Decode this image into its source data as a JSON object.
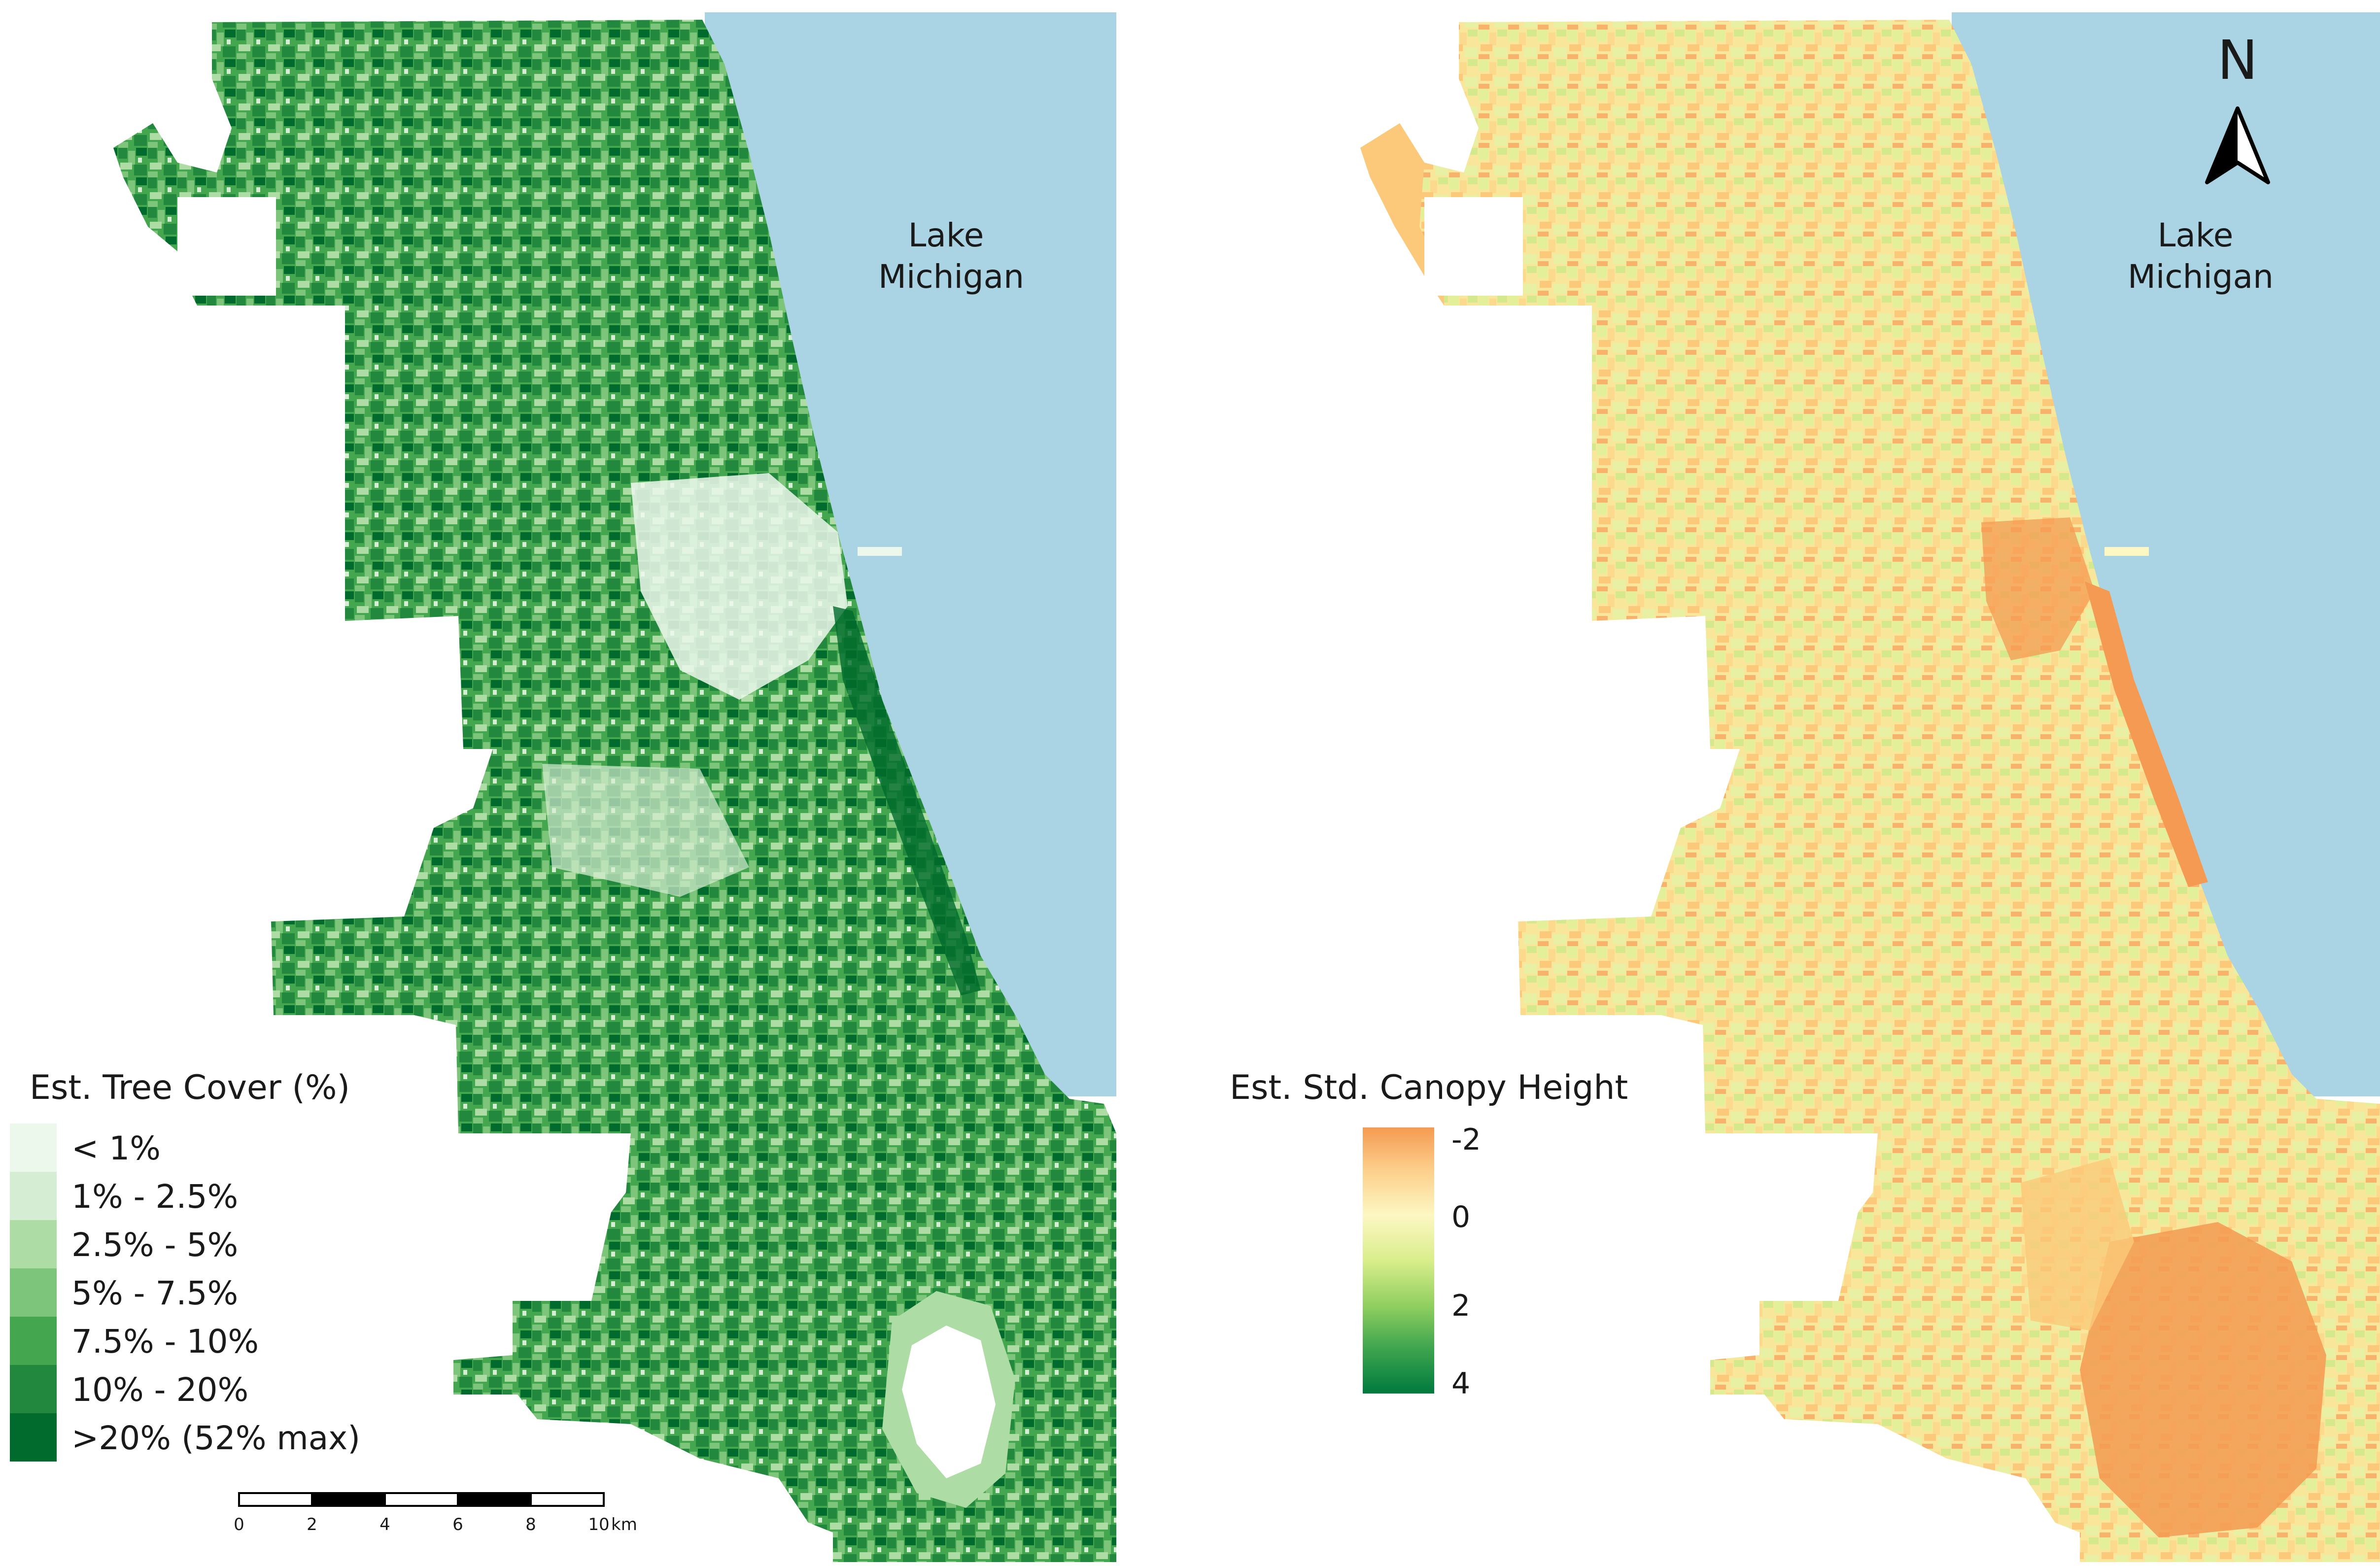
{
  "lake_label": [
    "Lake",
    "Michigan"
  ],
  "left_map": {
    "legend_title": "Est. Tree Cover (%)",
    "classes": [
      {
        "label": "< 1%",
        "color": "#edf8ec"
      },
      {
        "label": "1% - 2.5%",
        "color": "#d5edd2"
      },
      {
        "label": "2.5% - 5%",
        "color": "#aedca5"
      },
      {
        "label": "5% - 7.5%",
        "color": "#7cc57a"
      },
      {
        "label": "7.5% - 10%",
        "color": "#45a650"
      },
      {
        "label": "10% - 20%",
        "color": "#21883d"
      },
      {
        "label": ">20% (52% max)",
        "color": "#006b2c"
      }
    ]
  },
  "right_map": {
    "legend_title": "Est. Std. Canopy Height",
    "gradient_stops": [
      "#f59a52",
      "#fdcf8b",
      "#fdf7c3",
      "#d9ee8b",
      "#90cf5f",
      "#3ea54f",
      "#007a3d"
    ],
    "tick_labels": [
      "-2",
      "0",
      "2",
      "4"
    ],
    "tick_values": [
      -2,
      0,
      2,
      4
    ]
  },
  "scale_bar": {
    "labels": [
      "0",
      "2",
      "4",
      "6",
      "8",
      "10"
    ],
    "unit": "km"
  },
  "north_arrow": {
    "label": "N"
  },
  "colors": {
    "water": "#aad4e3",
    "land_outside": "#ffffff"
  }
}
